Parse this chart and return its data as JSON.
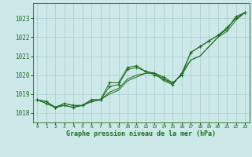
{
  "title": "Graphe pression niveau de la mer (hPa)",
  "bg_color": "#cce8e8",
  "line_color": "#1a6e1a",
  "grid_color": "#aacccc",
  "xlim": [
    -0.5,
    23.5
  ],
  "ylim": [
    1017.5,
    1023.8
  ],
  "yticks": [
    1018,
    1019,
    1020,
    1021,
    1022,
    1023
  ],
  "xticks": [
    0,
    1,
    2,
    3,
    4,
    5,
    6,
    7,
    8,
    9,
    10,
    11,
    12,
    13,
    14,
    15,
    16,
    17,
    18,
    19,
    20,
    21,
    22,
    23
  ],
  "series": [
    {
      "y": [
        1018.7,
        1018.6,
        1018.3,
        1018.5,
        1018.4,
        1018.4,
        1018.7,
        1018.7,
        1019.6,
        1019.6,
        1020.4,
        1020.5,
        1020.2,
        1020.1,
        1019.9,
        1019.6,
        1020.0,
        1021.2,
        1021.5,
        1021.8,
        1022.1,
        1022.4,
        1023.1,
        1023.3
      ],
      "marker": true
    },
    {
      "y": [
        1018.7,
        1018.6,
        1018.3,
        1018.5,
        1018.4,
        1018.4,
        1018.7,
        1018.7,
        1019.1,
        1019.3,
        1019.8,
        1020.0,
        1020.1,
        1020.1,
        1019.8,
        1019.6,
        1020.0,
        1020.8,
        1021.0,
        1021.5,
        1022.0,
        1022.3,
        1022.9,
        1023.3
      ],
      "marker": false
    },
    {
      "y": [
        1018.7,
        1018.5,
        1018.3,
        1018.4,
        1018.3,
        1018.4,
        1018.6,
        1018.7,
        1019.4,
        1019.5,
        1020.3,
        1020.4,
        1020.2,
        1020.0,
        1019.8,
        1019.5,
        1020.1,
        1021.2,
        1021.5,
        1021.8,
        1022.1,
        1022.5,
        1023.0,
        1023.3
      ],
      "marker": true
    },
    {
      "y": [
        1018.7,
        1018.5,
        1018.3,
        1018.4,
        1018.3,
        1018.4,
        1018.6,
        1018.7,
        1019.0,
        1019.2,
        1019.7,
        1019.9,
        1020.1,
        1020.1,
        1019.7,
        1019.5,
        1020.1,
        1020.8,
        1021.0,
        1021.5,
        1022.0,
        1022.5,
        1023.0,
        1023.3
      ],
      "marker": false
    }
  ]
}
